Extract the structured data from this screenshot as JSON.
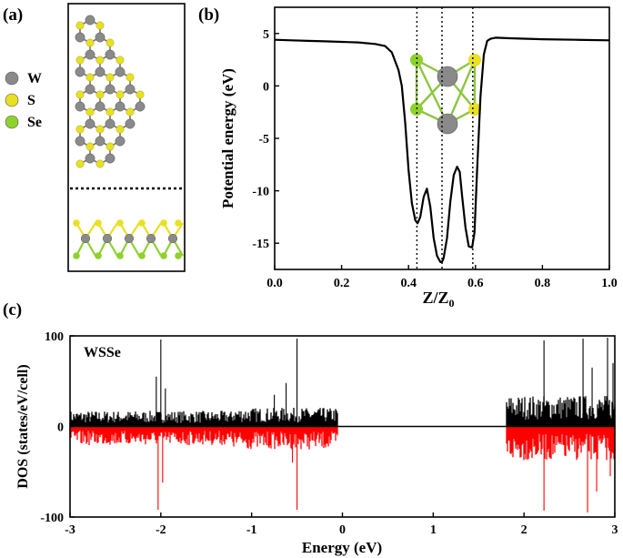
{
  "panels": {
    "a": {
      "label": "(a)",
      "legend": [
        {
          "symbol": "W",
          "color": "#8a8a8a"
        },
        {
          "symbol": "S",
          "color": "#e8e022"
        },
        {
          "symbol": "Se",
          "color": "#8fd12e"
        }
      ]
    },
    "b": {
      "label": "(b)"
    },
    "c": {
      "label": "(c)"
    }
  },
  "chart_data": [
    {
      "type": "line",
      "panel": "b",
      "xlabel": "Z/Z",
      "xlabel_sub": "0",
      "ylabel": "Potential energy (eV)",
      "xlim": [
        0.0,
        1.0
      ],
      "ylim": [
        -17.5,
        7.5
      ],
      "xticks": [
        "0.0",
        "0.2",
        "0.4",
        "0.6",
        "0.8",
        "1.0"
      ],
      "yticks": [
        "5",
        "0",
        "-5",
        "-10",
        "-15"
      ],
      "xtick_values": [
        0.0,
        0.2,
        0.4,
        0.6,
        0.8,
        1.0
      ],
      "ytick_values": [
        5,
        0,
        -5,
        -10,
        -15
      ],
      "vlines": [
        0.425,
        0.5,
        0.592
      ],
      "series": [
        {
          "color": "#000000",
          "x": [
            0.0,
            0.05,
            0.1,
            0.15,
            0.2,
            0.25,
            0.3,
            0.33,
            0.35,
            0.37,
            0.38,
            0.39,
            0.4,
            0.41,
            0.42,
            0.427,
            0.435,
            0.445,
            0.455,
            0.465,
            0.475,
            0.485,
            0.495,
            0.5,
            0.505,
            0.515,
            0.525,
            0.535,
            0.545,
            0.553,
            0.56,
            0.57,
            0.58,
            0.59,
            0.597,
            0.605,
            0.615,
            0.625,
            0.635,
            0.645,
            0.66,
            0.7,
            0.8,
            0.9,
            1.0
          ],
          "y": [
            4.4,
            4.35,
            4.3,
            4.25,
            4.2,
            4.15,
            4.0,
            3.8,
            3.2,
            1.5,
            0.0,
            -3.5,
            -8.0,
            -11.2,
            -12.8,
            -13.1,
            -12.5,
            -10.6,
            -9.8,
            -11.5,
            -14.5,
            -16.2,
            -16.8,
            -16.8,
            -16.4,
            -14.5,
            -11.0,
            -8.5,
            -7.7,
            -8.2,
            -10.5,
            -13.5,
            -15.3,
            -15.4,
            -14.0,
            -8.0,
            -1.0,
            3.0,
            4.3,
            4.5,
            4.6,
            4.55,
            4.45,
            4.4,
            4.35
          ]
        }
      ]
    },
    {
      "type": "area",
      "panel": "c",
      "annotation": "WSSe",
      "xlabel": "Energy (eV)",
      "ylabel": "DOS (states/eV/cell)",
      "xlim": [
        -3,
        3
      ],
      "ylim": [
        -100,
        100
      ],
      "xticks": [
        "-3",
        "-2",
        "-1",
        "0",
        "1",
        "2",
        "3"
      ],
      "yticks": [
        "100",
        "0",
        "-100"
      ],
      "xtick_values": [
        -3,
        -2,
        -1,
        0,
        1,
        2,
        3
      ],
      "ytick_values": [
        100,
        0,
        -100
      ],
      "series": [
        {
          "spin": "up",
          "color": "#000000",
          "bands": [
            [
              -3.0,
              -1.2,
              15
            ],
            [
              -1.2,
              -0.05,
              18
            ],
            [
              1.8,
              3.0,
              30
            ]
          ],
          "peaks": [
            [
              -2.0,
              96
            ],
            [
              -2.05,
              55
            ],
            [
              -1.95,
              42
            ],
            [
              -0.5,
              97
            ],
            [
              -0.62,
              48
            ],
            [
              -0.75,
              35
            ],
            [
              2.22,
              95
            ],
            [
              2.65,
              97
            ],
            [
              2.75,
              65
            ],
            [
              2.92,
              98
            ],
            [
              2.98,
              70
            ]
          ]
        },
        {
          "spin": "down",
          "color": "#ff0000",
          "bands": [
            [
              -3.0,
              -1.2,
              18
            ],
            [
              -1.2,
              -0.05,
              22
            ],
            [
              1.8,
              3.0,
              33
            ]
          ],
          "peaks": [
            [
              -2.03,
              92
            ],
            [
              -1.98,
              62
            ],
            [
              -0.5,
              92
            ],
            [
              -0.55,
              40
            ],
            [
              2.22,
              93
            ],
            [
              2.7,
              95
            ],
            [
              2.8,
              72
            ],
            [
              2.95,
              55
            ]
          ]
        }
      ]
    }
  ]
}
